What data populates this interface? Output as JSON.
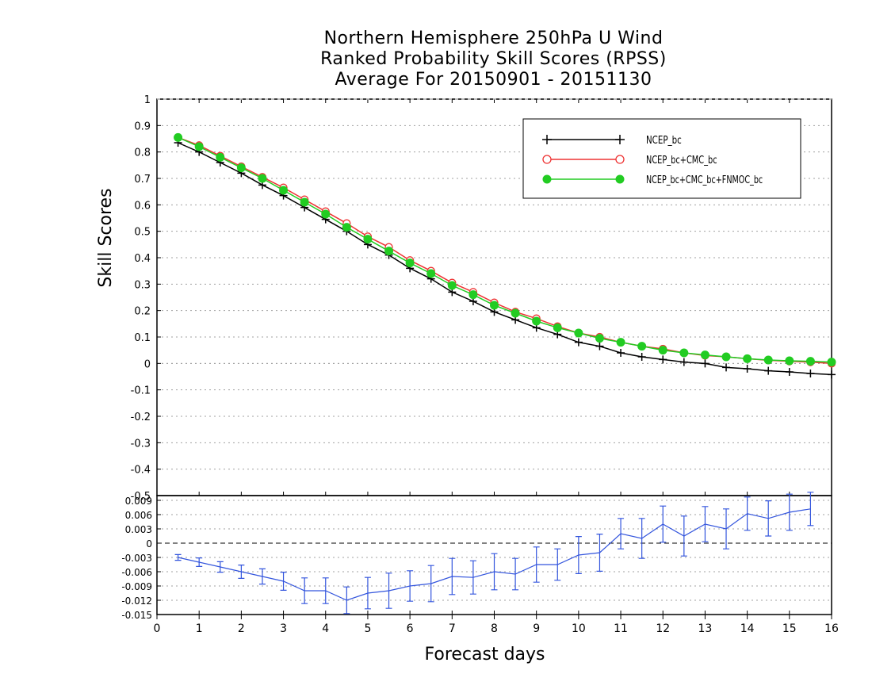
{
  "chart_data": [
    {
      "type": "line",
      "title_lines": [
        "Northern Hemisphere 250hPa U Wind",
        "Ranked Probability Skill Scores (RPSS)",
        "Average For 20150901 - 20151130"
      ],
      "ylabel": "Skill Scores",
      "xlabel": "",
      "xlim": [
        0,
        16
      ],
      "ylim": [
        -0.5,
        1
      ],
      "yticks": [
        "1",
        "0.9",
        "0.8",
        "0.7",
        "0.6",
        "0.5",
        "0.4",
        "0.3",
        "0.2",
        "0.1",
        "0",
        "-0.1",
        "-0.2",
        "-0.3",
        "-0.4",
        "-0.5"
      ],
      "grid": true,
      "legend_position": "top-right",
      "x": [
        0.5,
        1,
        1.5,
        2,
        2.5,
        3,
        3.5,
        4,
        4.5,
        5,
        5.5,
        6,
        6.5,
        7,
        7.5,
        8,
        8.5,
        9,
        9.5,
        10,
        10.5,
        11,
        11.5,
        12,
        12.5,
        13,
        13.5,
        14,
        14.5,
        15,
        15.5,
        16
      ],
      "series": [
        {
          "name": "NCEP_bc",
          "color": "#000000",
          "marker": "plus",
          "values": [
            0.835,
            0.8,
            0.76,
            0.72,
            0.675,
            0.635,
            0.59,
            0.545,
            0.5,
            0.45,
            0.41,
            0.36,
            0.32,
            0.27,
            0.235,
            0.195,
            0.165,
            0.135,
            0.11,
            0.08,
            0.065,
            0.04,
            0.025,
            0.015,
            0.005,
            0.0,
            -0.015,
            -0.02,
            -0.028,
            -0.032,
            -0.038,
            -0.042
          ]
        },
        {
          "name": "NCEP_bc+CMC_bc",
          "color": "#ee3333",
          "marker": "open-circle",
          "values": [
            0.855,
            0.825,
            0.785,
            0.745,
            0.705,
            0.665,
            0.62,
            0.575,
            0.53,
            0.48,
            0.44,
            0.39,
            0.35,
            0.305,
            0.27,
            0.23,
            0.195,
            0.17,
            0.14,
            0.115,
            0.1,
            0.08,
            0.065,
            0.055,
            0.04,
            0.03,
            0.025,
            0.018,
            0.012,
            0.008,
            0.005,
            0.0
          ]
        },
        {
          "name": "NCEP_bc+CMC_bc+FNMOC_bc",
          "color": "#22cc22",
          "marker": "filled-circle",
          "values": [
            0.855,
            0.82,
            0.78,
            0.74,
            0.7,
            0.655,
            0.61,
            0.565,
            0.515,
            0.47,
            0.425,
            0.38,
            0.34,
            0.295,
            0.26,
            0.22,
            0.19,
            0.16,
            0.135,
            0.115,
            0.095,
            0.08,
            0.065,
            0.05,
            0.04,
            0.032,
            0.025,
            0.018,
            0.013,
            0.01,
            0.008,
            0.005
          ]
        }
      ]
    },
    {
      "type": "line",
      "xlabel": "Forecast days",
      "xlim": [
        0,
        16
      ],
      "xticks": [
        "0",
        "1",
        "2",
        "3",
        "4",
        "5",
        "6",
        "7",
        "8",
        "9",
        "10",
        "11",
        "12",
        "13",
        "14",
        "15",
        "16"
      ],
      "ylim": [
        -0.015,
        0.01
      ],
      "yticks": [
        "0.009",
        "0.006",
        "0.003",
        "0",
        "-0.003",
        "-0.006",
        "-0.009",
        "-0.012",
        "-0.015"
      ],
      "grid": true,
      "series": [
        {
          "name": "",
          "color": "#3355dd",
          "marker": "error-bar",
          "x": [
            0.5,
            1,
            1.5,
            2,
            2.5,
            3,
            3.5,
            4,
            4.5,
            5,
            5.5,
            6,
            6.5,
            7,
            7.5,
            8,
            8.5,
            9,
            9.5,
            10,
            10.5,
            11,
            11.5,
            12,
            12.5,
            13,
            13.5,
            14,
            14.5,
            15,
            15.5
          ],
          "values": [
            -0.003,
            -0.004,
            -0.005,
            -0.006,
            -0.007,
            -0.008,
            -0.01,
            -0.01,
            -0.012,
            -0.0105,
            -0.01,
            -0.009,
            -0.0085,
            -0.007,
            -0.0072,
            -0.006,
            -0.0065,
            -0.0045,
            -0.0045,
            -0.0025,
            -0.002,
            0.002,
            0.001,
            0.004,
            0.0015,
            0.004,
            0.003,
            0.0062,
            0.0052,
            0.0065,
            0.0072
          ],
          "error": [
            0.0006,
            0.0009,
            0.0011,
            0.0014,
            0.0016,
            0.0019,
            0.0027,
            0.0027,
            0.0028,
            0.0033,
            0.0037,
            0.0032,
            0.0038,
            0.0038,
            0.0035,
            0.0038,
            0.0033,
            0.0037,
            0.0033,
            0.0039,
            0.0039,
            0.0032,
            0.0042,
            0.0038,
            0.0042,
            0.0037,
            0.0042,
            0.0035,
            0.0037,
            0.0038,
            0.0035
          ]
        }
      ]
    }
  ]
}
